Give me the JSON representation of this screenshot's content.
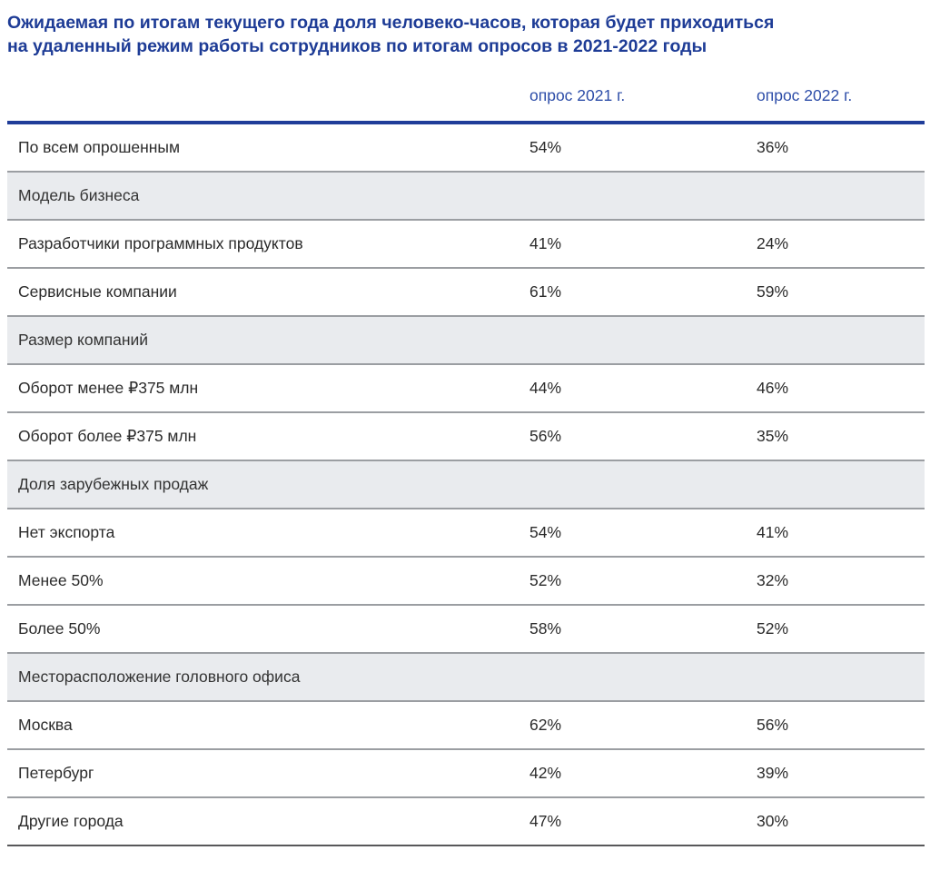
{
  "title": {
    "line1": "Ожидаемая по итогам текущего года доля человеко-часов, которая будет приходиться",
    "line2": "на удаленный режим работы сотрудников по итогам опросов в 2021-2022 годы"
  },
  "header": {
    "col2021": "опрос 2021 г.",
    "col2022": "опрос 2022 г."
  },
  "rows": [
    {
      "type": "data",
      "label": "По всем опрошенным",
      "v2021": "54%",
      "v2022": "36%"
    },
    {
      "type": "section",
      "label": "Модель бизнеса"
    },
    {
      "type": "data",
      "label": "Разработчики программных продуктов",
      "v2021": "41%",
      "v2022": "24%"
    },
    {
      "type": "data",
      "label": "Сервисные компании",
      "v2021": "61%",
      "v2022": "59%"
    },
    {
      "type": "section",
      "label": "Размер компаний"
    },
    {
      "type": "data",
      "label": "Оборот менее ₽375 млн",
      "v2021": "44%",
      "v2022": "46%"
    },
    {
      "type": "data",
      "label": "Оборот более ₽375 млн",
      "v2021": "56%",
      "v2022": "35%"
    },
    {
      "type": "section",
      "label": "Доля зарубежных продаж"
    },
    {
      "type": "data",
      "label": "Нет экспорта",
      "v2021": "54%",
      "v2022": "41%"
    },
    {
      "type": "data",
      "label": "Менее 50%",
      "v2021": "52%",
      "v2022": "32%"
    },
    {
      "type": "data",
      "label": "Более 50%",
      "v2021": "58%",
      "v2022": "52%"
    },
    {
      "type": "section",
      "label": "Месторасположение головного офиса"
    },
    {
      "type": "data",
      "label": "Москва",
      "v2021": "62%",
      "v2022": "56%"
    },
    {
      "type": "data",
      "label": "Петербург",
      "v2021": "42%",
      "v2022": "39%"
    },
    {
      "type": "data",
      "label": "Другие города",
      "v2021": "47%",
      "v2022": "30%"
    }
  ],
  "chart_data": {
    "type": "table",
    "title": "Ожидаемая по итогам текущего года доля человеко-часов, которая будет приходиться на удаленный режим работы сотрудников по итогам опросов в 2021-2022 годы",
    "columns": [
      "опрос 2021 г.",
      "опрос 2022 г."
    ],
    "categories": [
      "По всем опрошенным",
      "Разработчики программных продуктов",
      "Сервисные компании",
      "Оборот менее ₽375 млн",
      "Оборот более ₽375 млн",
      "Нет экспорта",
      "Менее 50%",
      "Более 50%",
      "Москва",
      "Петербург",
      "Другие города"
    ],
    "sections": [
      "Модель бизнеса",
      "Размер компаний",
      "Доля зарубежных продаж",
      "Месторасположение головного офиса"
    ],
    "series": [
      {
        "name": "опрос 2021 г.",
        "values": [
          54,
          41,
          61,
          44,
          56,
          54,
          52,
          58,
          62,
          42,
          47
        ]
      },
      {
        "name": "опрос 2022 г.",
        "values": [
          36,
          24,
          59,
          46,
          35,
          41,
          32,
          52,
          56,
          39,
          30
        ]
      }
    ],
    "unit": "%"
  },
  "colors": {
    "title_navy": "#1e3c96",
    "header_blue": "#2d4da8",
    "top_rule_navy": "#203d99",
    "section_bg": "#e9ebee",
    "row_divider": "#9b9ea2",
    "bottom_border": "#58585a",
    "body_text": "#2b2b2b"
  }
}
